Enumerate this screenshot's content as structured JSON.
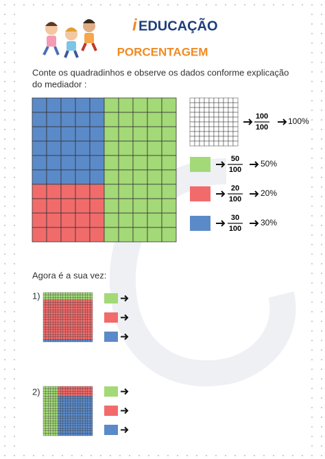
{
  "header": {
    "logo_mark": "i",
    "logo": "EDUCAÇÃO",
    "title": "PORCENTAGEM"
  },
  "instruction": {
    "line1": "Conte os quadradinhos e observe os dados conforme explicação",
    "line2": "do mediador :"
  },
  "legend": [
    {
      "numerator": "100",
      "denominator": "100",
      "percent": "100%"
    },
    {
      "numerator": "50",
      "denominator": "100",
      "percent": "50%"
    },
    {
      "numerator": "20",
      "denominator": "100",
      "percent": "20%"
    },
    {
      "numerator": "30",
      "denominator": "100",
      "percent": "30%"
    }
  ],
  "exercise": {
    "prompt": "Agora é a sua vez:",
    "items": [
      "1)",
      "2)"
    ]
  }
}
